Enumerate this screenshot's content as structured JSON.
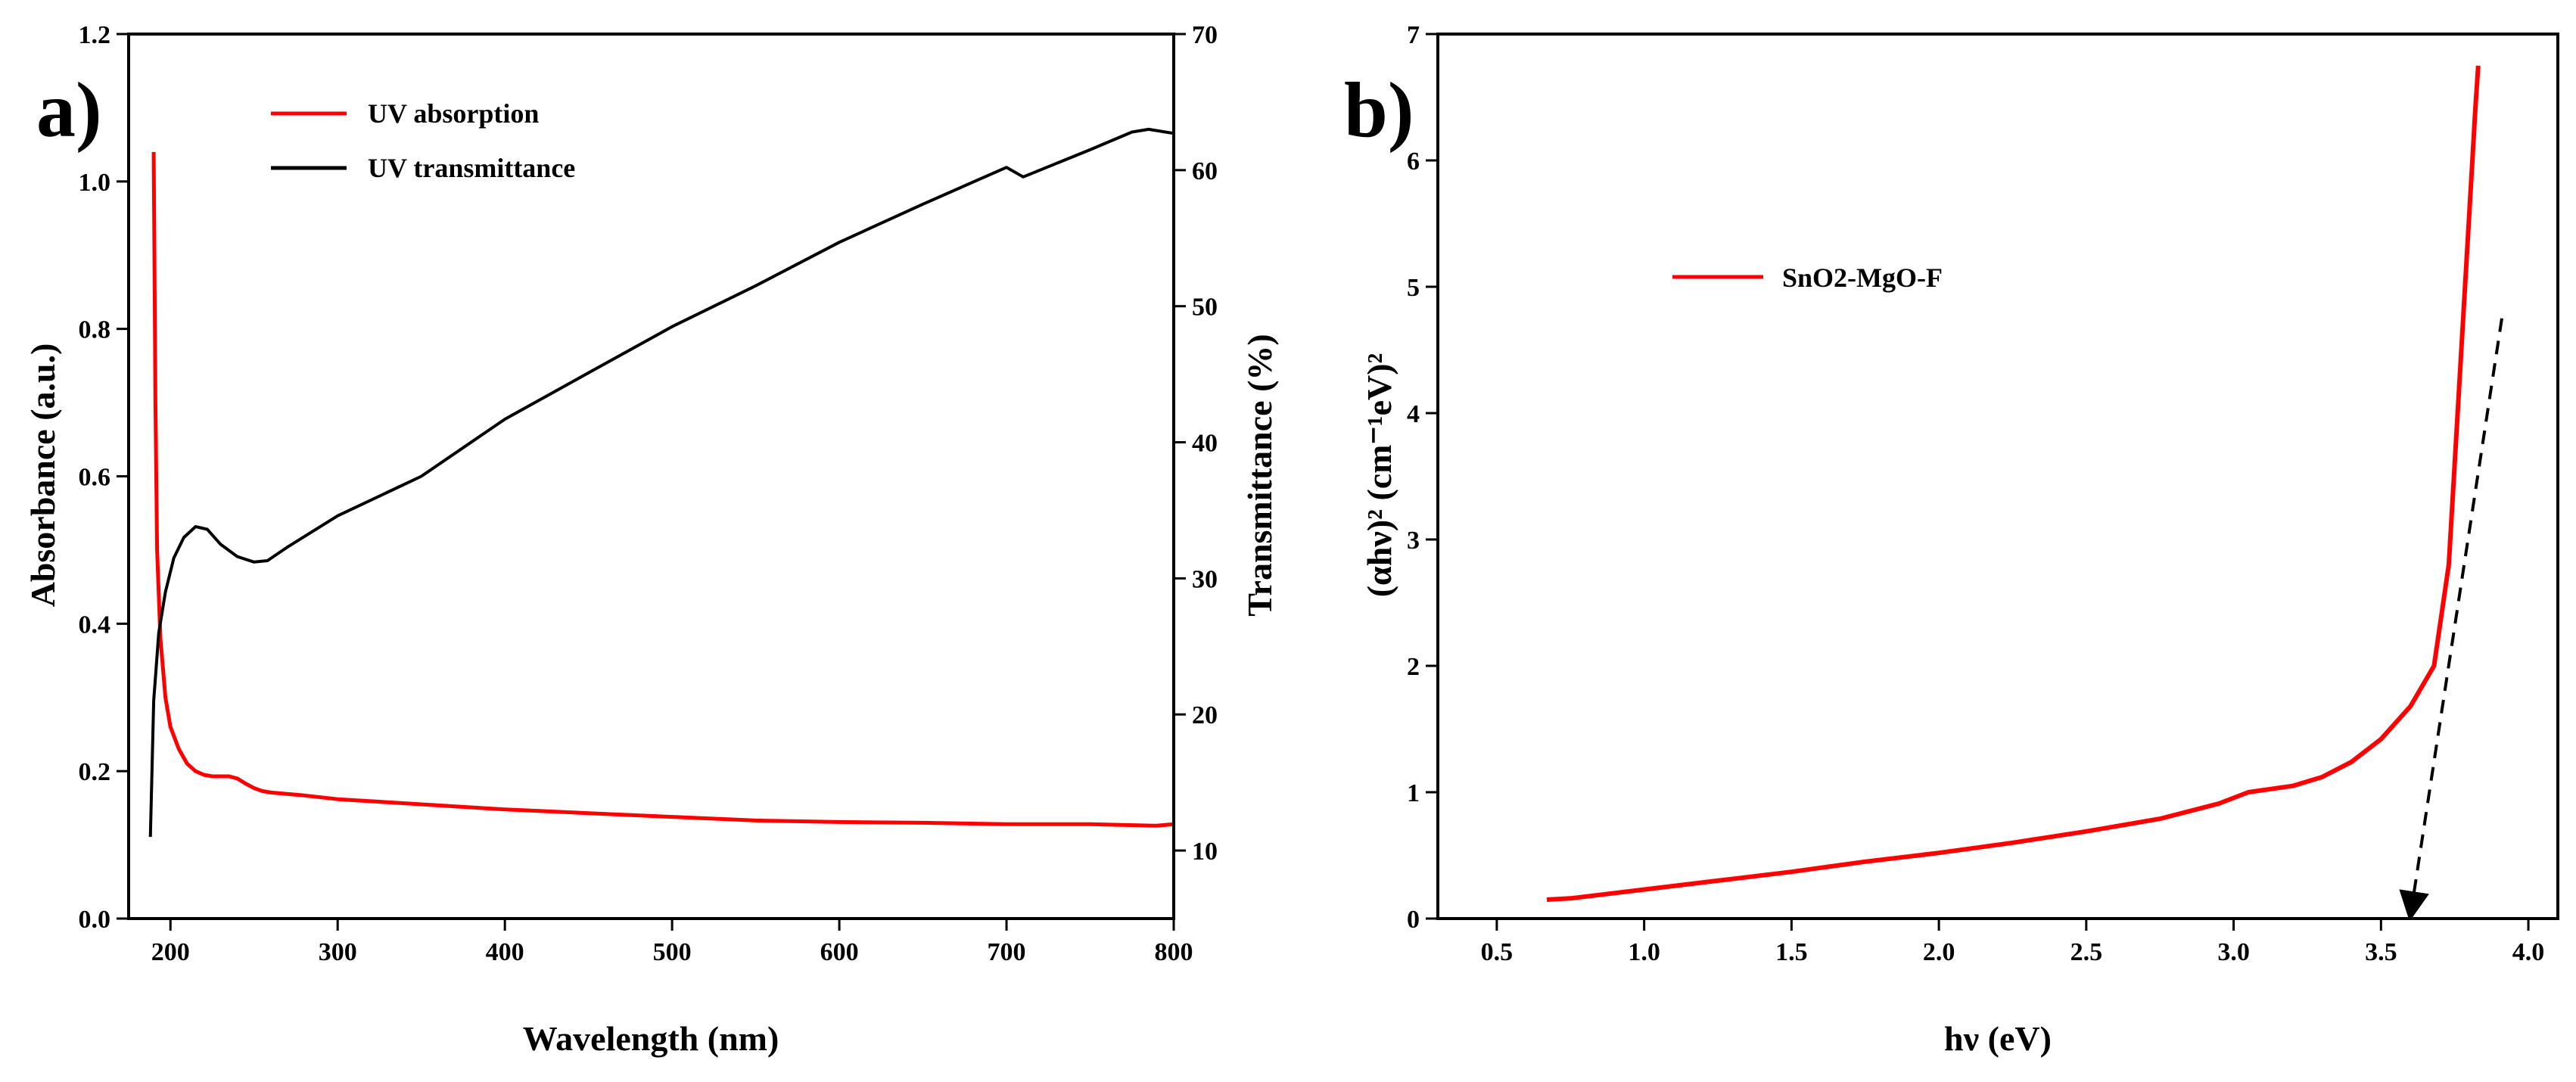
{
  "chart_data": [
    {
      "type": "line",
      "panel_label": "a)",
      "xlabel": "Wavelength (nm)",
      "ylabel": "Absorbance (a.u.)",
      "ylabel_right": "Transmittance (%)",
      "xlim": [
        175,
        800
      ],
      "ylim": [
        0.0,
        1.2
      ],
      "ylim_right": [
        5,
        70
      ],
      "xticks": [
        200,
        300,
        400,
        500,
        600,
        700,
        800
      ],
      "yticks": [
        0.0,
        0.2,
        0.4,
        0.6,
        0.8,
        1.0,
        1.2
      ],
      "yticks_right": [
        10,
        20,
        30,
        40,
        50,
        60,
        70
      ],
      "xtick_labels": [
        "200",
        "300",
        "400",
        "500",
        "600",
        "700",
        "800"
      ],
      "ytick_labels": [
        "0.0",
        "0.2",
        "0.4",
        "0.6",
        "0.8",
        "1.0",
        "1.2"
      ],
      "ytick_right_labels": [
        "10",
        "20",
        "30",
        "40",
        "50",
        "60",
        "70"
      ],
      "legend_position": "top-left",
      "series": [
        {
          "name": "UV absorption",
          "axis": "left",
          "color": "#ff0000",
          "x": [
            190,
            191,
            192,
            194,
            197,
            200,
            205,
            210,
            215,
            220,
            225,
            230,
            235,
            240,
            245,
            250,
            255,
            260,
            280,
            300,
            350,
            400,
            450,
            500,
            550,
            600,
            650,
            700,
            750,
            790,
            800
          ],
          "y": [
            1.04,
            0.7,
            0.5,
            0.38,
            0.3,
            0.26,
            0.23,
            0.21,
            0.2,
            0.195,
            0.193,
            0.193,
            0.193,
            0.19,
            0.183,
            0.177,
            0.173,
            0.171,
            0.167,
            0.162,
            0.155,
            0.148,
            0.143,
            0.138,
            0.133,
            0.131,
            0.13,
            0.128,
            0.128,
            0.126,
            0.128
          ]
        },
        {
          "name": "UV transmittance",
          "axis": "right",
          "color": "#000000",
          "x": [
            188,
            190,
            193,
            197,
            202,
            208,
            215,
            222,
            230,
            240,
            250,
            258,
            270,
            300,
            350,
            400,
            450,
            500,
            550,
            600,
            650,
            700,
            710,
            720,
            750,
            775,
            785,
            795,
            800
          ],
          "y": [
            11,
            21,
            26,
            29,
            31.5,
            33,
            33.8,
            33.6,
            32.5,
            31.6,
            31.2,
            31.3,
            32.3,
            34.6,
            37.5,
            41.7,
            45.1,
            48.5,
            51.5,
            54.7,
            57.5,
            60.2,
            59.5,
            60,
            61.5,
            62.8,
            63,
            62.8,
            62.7
          ]
        }
      ]
    },
    {
      "type": "line",
      "panel_label": "b)",
      "xlabel": "hν (eV)",
      "ylabel": "(αhν)² (cm⁻¹eV)²",
      "xlim": [
        0.3,
        4.1
      ],
      "ylim": [
        0,
        7
      ],
      "xticks": [
        0.5,
        1.0,
        1.5,
        2.0,
        2.5,
        3.0,
        3.5,
        4.0
      ],
      "yticks": [
        0,
        1,
        2,
        3,
        4,
        5,
        6,
        7
      ],
      "xtick_labels": [
        "0.5",
        "1.0",
        "1.5",
        "2.0",
        "2.5",
        "3.0",
        "3.5",
        "4.0"
      ],
      "ytick_labels": [
        "0",
        "1",
        "2",
        "3",
        "4",
        "5",
        "6",
        "7"
      ],
      "legend_position": "upper-left",
      "series": [
        {
          "name": "SnO2-MgO-F",
          "color": "#ff0000",
          "x": [
            0.67,
            0.75,
            1.0,
            1.25,
            1.5,
            1.75,
            2.0,
            2.25,
            2.5,
            2.75,
            2.95,
            3.05,
            3.2,
            3.3,
            3.4,
            3.5,
            3.6,
            3.68,
            3.73,
            3.76,
            3.79,
            3.81,
            3.82,
            3.83
          ],
          "y": [
            0.15,
            0.16,
            0.23,
            0.3,
            0.37,
            0.45,
            0.52,
            0.6,
            0.69,
            0.79,
            0.91,
            1.0,
            1.05,
            1.12,
            1.24,
            1.42,
            1.68,
            2.0,
            2.8,
            4.0,
            5.2,
            6.0,
            6.4,
            6.75
          ]
        }
      ],
      "annotations": [
        {
          "type": "dashed-arrow",
          "from": [
            3.91,
            4.75
          ],
          "to": [
            3.6,
            0.0
          ]
        }
      ]
    }
  ]
}
